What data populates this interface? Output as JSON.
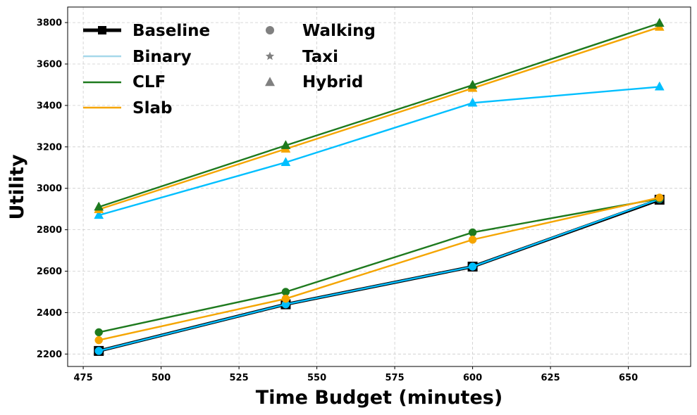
{
  "chart_data": {
    "type": "line",
    "title": "",
    "xlabel": "Time Budget (minutes)",
    "ylabel": "Utility",
    "xlim": [
      470,
      670
    ],
    "ylim": [
      2140,
      3875
    ],
    "xticks": [
      475,
      500,
      525,
      550,
      575,
      600,
      625,
      650
    ],
    "yticks": [
      2200,
      2400,
      2600,
      2800,
      3000,
      3200,
      3400,
      3600,
      3800
    ],
    "grid": true,
    "legend_position": "top-left",
    "legend": {
      "methods": [
        {
          "label": "Baseline",
          "color": "#000000",
          "marker": "square"
        },
        {
          "label": "Binary",
          "color": "#a6d8ea",
          "marker": "none"
        },
        {
          "label": "CLF",
          "color": "#1e7a1e",
          "marker": "none"
        },
        {
          "label": "Slab",
          "color": "#f5a500",
          "marker": "none"
        }
      ],
      "modes": [
        {
          "label": "Walking",
          "color": "#808080",
          "marker": "circle"
        },
        {
          "label": "Taxi",
          "color": "#808080",
          "marker": "star"
        },
        {
          "label": "Hybrid",
          "color": "#808080",
          "marker": "triangle"
        }
      ]
    },
    "x": [
      480,
      540,
      600,
      660
    ],
    "series": [
      {
        "method": "Baseline",
        "mode": "Walking",
        "color": "#000000",
        "marker": "square",
        "values": [
          2215,
          2440,
          2622,
          2945
        ]
      },
      {
        "method": "Binary",
        "mode": "Walking",
        "color": "#00bfff",
        "marker": "circle",
        "values": [
          2215,
          2440,
          2622,
          2948
        ]
      },
      {
        "method": "CLF",
        "mode": "Walking",
        "color": "#1e7a1e",
        "marker": "circle",
        "values": [
          2305,
          2500,
          2787,
          2950
        ]
      },
      {
        "method": "Slab",
        "mode": "Walking",
        "color": "#f5a500",
        "marker": "circle",
        "values": [
          2267,
          2467,
          2752,
          2955
        ]
      },
      {
        "method": "Binary",
        "mode": "Hybrid",
        "color": "#00bfff",
        "marker": "triangle",
        "values": [
          2870,
          3125,
          3412,
          3490
        ]
      },
      {
        "method": "Slab",
        "mode": "Hybrid",
        "color": "#f5a500",
        "marker": "triangle",
        "values": [
          2898,
          3190,
          3483,
          3778
        ]
      },
      {
        "method": "CLF",
        "mode": "Hybrid",
        "color": "#1e7a1e",
        "marker": "triangle",
        "values": [
          2910,
          3207,
          3498,
          3797
        ]
      }
    ]
  }
}
